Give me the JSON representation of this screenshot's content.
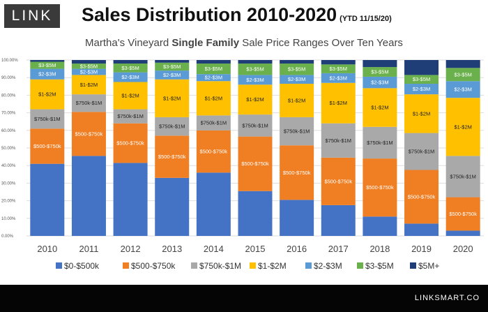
{
  "brand": "LINK",
  "title": "Sales Distribution 2010-2020",
  "title_note": "(YTD 11/15/20)",
  "subtitle_pre": "Martha's Vineyard ",
  "subtitle_bold": "Single Family",
  "subtitle_post": " Sale Price Ranges Over Ten Years",
  "footer_site": "LINKSMART.CO",
  "colors": {
    "$0-$500k": "#4472c4",
    "$500-$750k": "#f07f24",
    "$750k-$1M": "#a9a9a9",
    "$1-$2M": "#ffc000",
    "$2-$3M": "#5b9bd5",
    "$3-$5M": "#6ab04c",
    "$5M+": "#1f3e78"
  },
  "chart_data": {
    "type": "bar",
    "stacked": true,
    "grid": true,
    "legend_position": "bottom",
    "ylim": [
      0,
      100
    ],
    "yticks": [
      "0.00%",
      "10.00%",
      "20.00%",
      "30.00%",
      "40.00%",
      "50.00%",
      "60.00%",
      "70.00%",
      "80.00%",
      "90.00%",
      "100.00%"
    ],
    "categories": [
      "2010",
      "2011",
      "2012",
      "2013",
      "2014",
      "2015",
      "2016",
      "2017",
      "2018",
      "2019",
      "2020"
    ],
    "series": [
      {
        "name": "$0-$500k",
        "values": [
          41,
          45.5,
          41.5,
          33,
          36,
          25.5,
          20.5,
          17.5,
          11,
          7,
          3
        ]
      },
      {
        "name": "$500-$750k",
        "values": [
          20,
          25,
          22.5,
          24,
          24,
          31,
          31,
          27,
          33,
          30.5,
          19
        ]
      },
      {
        "name": "$750k-$1M",
        "values": [
          11,
          10,
          8,
          10.5,
          8.5,
          12.5,
          16,
          19.5,
          18,
          21,
          23.5
        ]
      },
      {
        "name": "$1-$2M",
        "values": [
          17,
          11,
          15.5,
          21.5,
          19.5,
          17,
          19,
          23,
          22,
          22,
          33
        ]
      },
      {
        "name": "$2-$3M",
        "values": [
          6,
          3.5,
          5.5,
          5,
          4,
          5.5,
          5,
          5.5,
          6.5,
          6,
          9.5
        ]
      },
      {
        "name": "$3-$5M",
        "values": [
          4,
          3,
          5,
          4.5,
          6,
          6.5,
          6.5,
          5,
          5.5,
          5,
          7.5
        ]
      },
      {
        "name": "$5M+",
        "values": [
          1,
          2,
          2,
          1.5,
          2,
          2,
          2,
          2.5,
          4,
          8.5,
          4.5
        ]
      }
    ]
  }
}
